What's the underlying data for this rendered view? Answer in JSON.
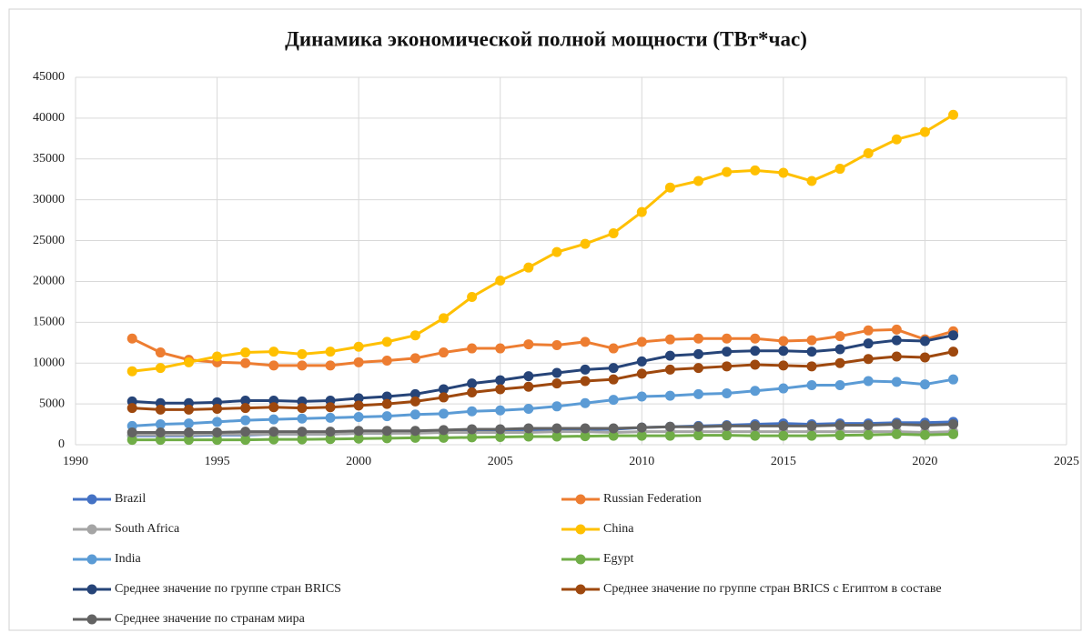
{
  "chart_data": {
    "type": "line",
    "title": "Динамика экономической полной мощности (ТВт*час)",
    "x": [
      1992,
      1993,
      1994,
      1995,
      1996,
      1997,
      1998,
      1999,
      2000,
      2001,
      2002,
      2003,
      2004,
      2005,
      2006,
      2007,
      2008,
      2009,
      2010,
      2011,
      2012,
      2013,
      2014,
      2015,
      2016,
      2017,
      2018,
      2019,
      2020,
      2021
    ],
    "xlim": [
      1990,
      2025
    ],
    "xticks": [
      1990,
      1995,
      2000,
      2005,
      2010,
      2015,
      2020,
      2025
    ],
    "ylim": [
      0,
      45000
    ],
    "yticks": [
      0,
      5000,
      10000,
      15000,
      20000,
      25000,
      30000,
      35000,
      40000,
      45000
    ],
    "grid": true,
    "series": [
      {
        "name": "Brazil",
        "color": "#4472c4",
        "values": [
          1100,
          1100,
          1100,
          1200,
          1200,
          1300,
          1300,
          1300,
          1400,
          1400,
          1500,
          1500,
          1600,
          1700,
          1700,
          1800,
          1900,
          1900,
          2100,
          2200,
          2300,
          2400,
          2500,
          2600,
          2500,
          2600,
          2600,
          2700,
          2700,
          2800
        ]
      },
      {
        "name": "Russian Federation",
        "color": "#ed7d31",
        "values": [
          13000,
          11300,
          10400,
          10100,
          10000,
          9700,
          9700,
          9700,
          10100,
          10300,
          10600,
          11300,
          11800,
          11800,
          12300,
          12200,
          12600,
          11800,
          12600,
          12900,
          13000,
          13000,
          13000,
          12700,
          12800,
          13300,
          14000,
          14100,
          12900,
          13900
        ]
      },
      {
        "name": "South Africa",
        "color": "#a5a5a5",
        "values": [
          1200,
          1200,
          1200,
          1300,
          1300,
          1300,
          1300,
          1300,
          1400,
          1400,
          1400,
          1500,
          1500,
          1500,
          1500,
          1600,
          1600,
          1500,
          1600,
          1600,
          1600,
          1600,
          1600,
          1600,
          1600,
          1600,
          1600,
          1600,
          1500,
          1600
        ]
      },
      {
        "name": "China",
        "color": "#ffc000",
        "values": [
          9000,
          9400,
          10100,
          10800,
          11300,
          11400,
          11100,
          11400,
          12000,
          12600,
          13400,
          15500,
          18100,
          20100,
          21700,
          23600,
          24600,
          25900,
          28500,
          31500,
          32300,
          33400,
          33600,
          33300,
          32300,
          33800,
          35700,
          37400,
          38300,
          40400
        ]
      },
      {
        "name": "India",
        "color": "#5b9bd5",
        "values": [
          2300,
          2500,
          2600,
          2800,
          3000,
          3100,
          3200,
          3300,
          3400,
          3500,
          3700,
          3800,
          4100,
          4200,
          4400,
          4700,
          5100,
          5500,
          5900,
          6000,
          6200,
          6300,
          6600,
          6900,
          7300,
          7300,
          7800,
          7700,
          7400,
          8000
        ]
      },
      {
        "name": "Egypt",
        "color": "#70ad47",
        "values": [
          600,
          600,
          600,
          600,
          600,
          650,
          650,
          700,
          750,
          800,
          850,
          850,
          900,
          950,
          1000,
          1000,
          1050,
          1100,
          1100,
          1100,
          1150,
          1150,
          1100,
          1100,
          1100,
          1150,
          1200,
          1300,
          1200,
          1300
        ]
      },
      {
        "name": "Среднее значение по группе стран BRICS",
        "color": "#264478",
        "values": [
          5300,
          5100,
          5100,
          5200,
          5400,
          5400,
          5300,
          5400,
          5700,
          5900,
          6200,
          6800,
          7500,
          7900,
          8400,
          8800,
          9200,
          9400,
          10200,
          10900,
          11100,
          11400,
          11500,
          11500,
          11400,
          11700,
          12400,
          12800,
          12700,
          13400
        ]
      },
      {
        "name": "Среднее значение по группе стран BRICS с Египтом в составе",
        "color": "#9e480e",
        "values": [
          4500,
          4300,
          4300,
          4400,
          4500,
          4600,
          4500,
          4600,
          4800,
          5000,
          5300,
          5800,
          6400,
          6800,
          7100,
          7500,
          7800,
          8000,
          8700,
          9200,
          9400,
          9600,
          9800,
          9700,
          9600,
          10000,
          10500,
          10800,
          10700,
          11400
        ]
      },
      {
        "name": "Среднее значение по странам мира",
        "color": "#636363",
        "values": [
          1500,
          1500,
          1500,
          1500,
          1600,
          1600,
          1600,
          1600,
          1700,
          1700,
          1700,
          1800,
          1900,
          1900,
          2000,
          2000,
          2000,
          2000,
          2100,
          2200,
          2200,
          2300,
          2300,
          2300,
          2300,
          2400,
          2400,
          2500,
          2400,
          2500
        ]
      }
    ]
  }
}
